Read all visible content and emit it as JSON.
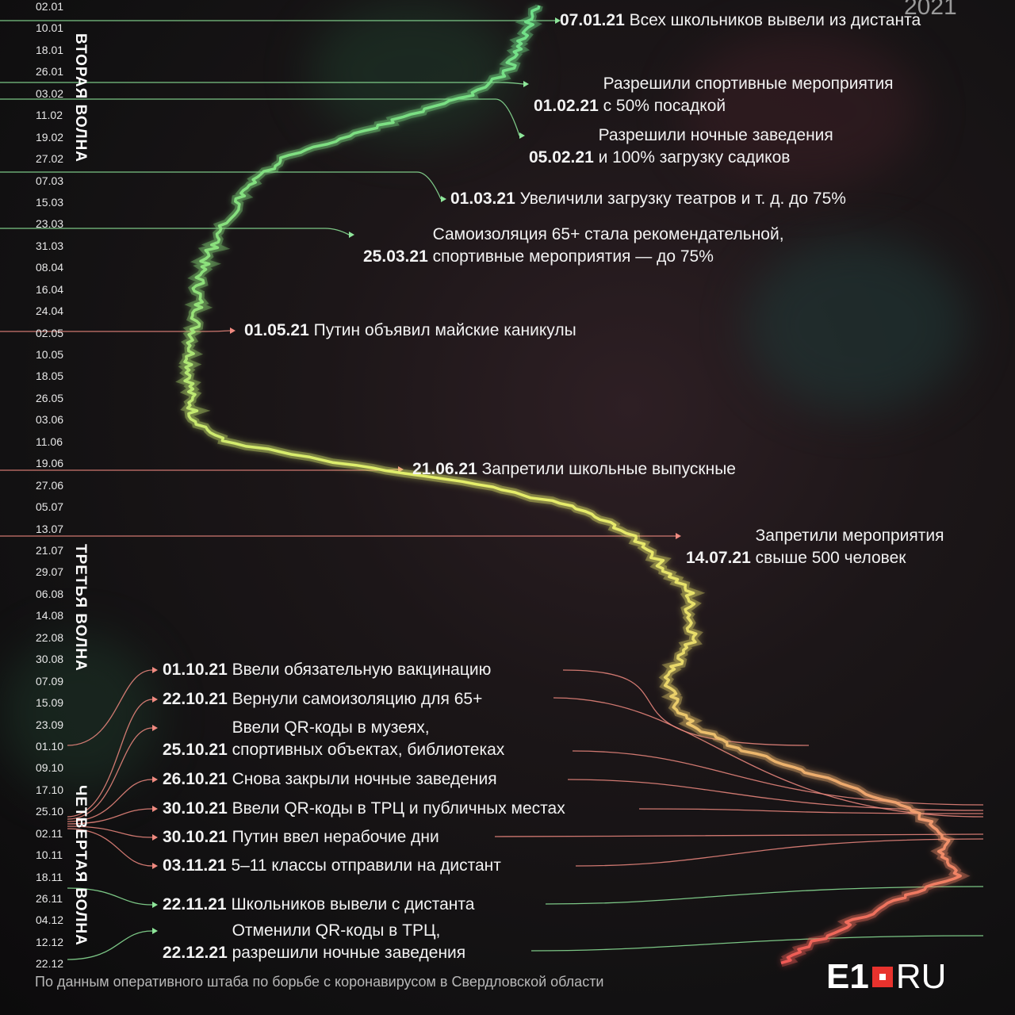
{
  "year": "2021",
  "source": "По данным оперативного штаба по борьбе с коронавирусом в Свердловской области",
  "logo": {
    "main": "E1",
    "suffix": "RU"
  },
  "colors": {
    "green": "#7be38a",
    "yellow": "#e8e85a",
    "red": "#f07a72"
  },
  "chart_data": {
    "type": "line",
    "orientation": "vertical-time-axis",
    "y_dates": [
      "02.01",
      "10.01",
      "18.01",
      "26.01",
      "03.02",
      "11.02",
      "19.02",
      "27.02",
      "07.03",
      "15.03",
      "23.03",
      "31.03",
      "08.04",
      "16.04",
      "24.04",
      "02.05",
      "10.05",
      "18.05",
      "26.05",
      "03.06",
      "11.06",
      "19.06",
      "27.06",
      "05.07",
      "13.07",
      "21.07",
      "29.07",
      "06.08",
      "14.08",
      "22.08",
      "30.08",
      "07.09",
      "15.09",
      "23.09",
      "01.10",
      "09.10",
      "17.10",
      "25.10",
      "02.11",
      "10.11",
      "18.11",
      "26.11",
      "04.12",
      "12.12",
      "22.12"
    ],
    "series": [
      {
        "values": [
          680,
          665,
          655,
          640,
          600,
          520,
          440,
          360,
          320,
          300,
          285,
          270,
          255,
          250,
          250,
          245,
          240,
          240,
          240,
          245,
          280,
          420,
          600,
          720,
          780,
          820,
          840,
          870,
          870,
          875,
          860,
          840,
          850,
          870,
          920,
          1000,
          1080,
          1150,
          1190,
          1190,
          1210,
          1140,
          1080,
          1030,
          985
        ]
      }
    ],
    "waves": [
      "ВТОРАЯ ВОЛНА",
      "ТРЕТЬЯ ВОЛНА",
      "ЧЕТВЕРТАЯ ВОЛНА"
    ],
    "annotations": [
      {
        "date": "07.01.21",
        "text": [
          "Всех школьников вывели из дистанта"
        ],
        "color": "green"
      },
      {
        "date": "01.02.21",
        "text": [
          "Разрешили спортивные мероприятия",
          "с 50% посадкой"
        ],
        "color": "green"
      },
      {
        "date": "05.02.21",
        "text": [
          "Разрешили ночные заведения",
          "и 100% загрузку садиков"
        ],
        "color": "green"
      },
      {
        "date": "01.03.21",
        "text": [
          "Увеличили загрузку театров и т. д. до 75%"
        ],
        "color": "green"
      },
      {
        "date": "25.03.21",
        "text": [
          "Самоизоляция 65+ стала рекомендательной,",
          "спортивные мероприятия — до 75%"
        ],
        "color": "green"
      },
      {
        "date": "01.05.21",
        "text": [
          "Путин объявил майские каникулы"
        ],
        "color": "red"
      },
      {
        "date": "21.06.21",
        "text": [
          "Запретили школьные выпускные"
        ],
        "color": "red"
      },
      {
        "date": "14.07.21",
        "text": [
          "Запретили мероприятия",
          "свыше 500 человек"
        ],
        "color": "red"
      },
      {
        "date": "01.10.21",
        "text": [
          "Ввели обязательную вакцинацию"
        ],
        "color": "red"
      },
      {
        "date": "22.10.21",
        "text": [
          "Вернули самоизоляцию для 65+"
        ],
        "color": "red"
      },
      {
        "date": "25.10.21",
        "text": [
          "Ввели QR-коды в музеях,",
          "спортивных объектах, библиотеках"
        ],
        "color": "red"
      },
      {
        "date": "26.10.21",
        "text": [
          "Снова закрыли ночные заведения"
        ],
        "color": "red"
      },
      {
        "date": "30.10.21",
        "text": [
          "Ввели QR-коды в ТРЦ и публичных местах"
        ],
        "color": "red"
      },
      {
        "date": "30.10.21",
        "text": [
          "Путин ввел нерабочие дни"
        ],
        "color": "red"
      },
      {
        "date": "03.11.21",
        "text": [
          "5–11 классы отправили на дистант"
        ],
        "color": "red"
      },
      {
        "date": "22.11.21",
        "text": [
          "Школьников вывели с дистанта"
        ],
        "color": "green"
      },
      {
        "date": "22.12.21",
        "text": [
          "Отменили QR-коды в ТРЦ,",
          "разрешили ночные заведения"
        ],
        "color": "green"
      }
    ]
  }
}
